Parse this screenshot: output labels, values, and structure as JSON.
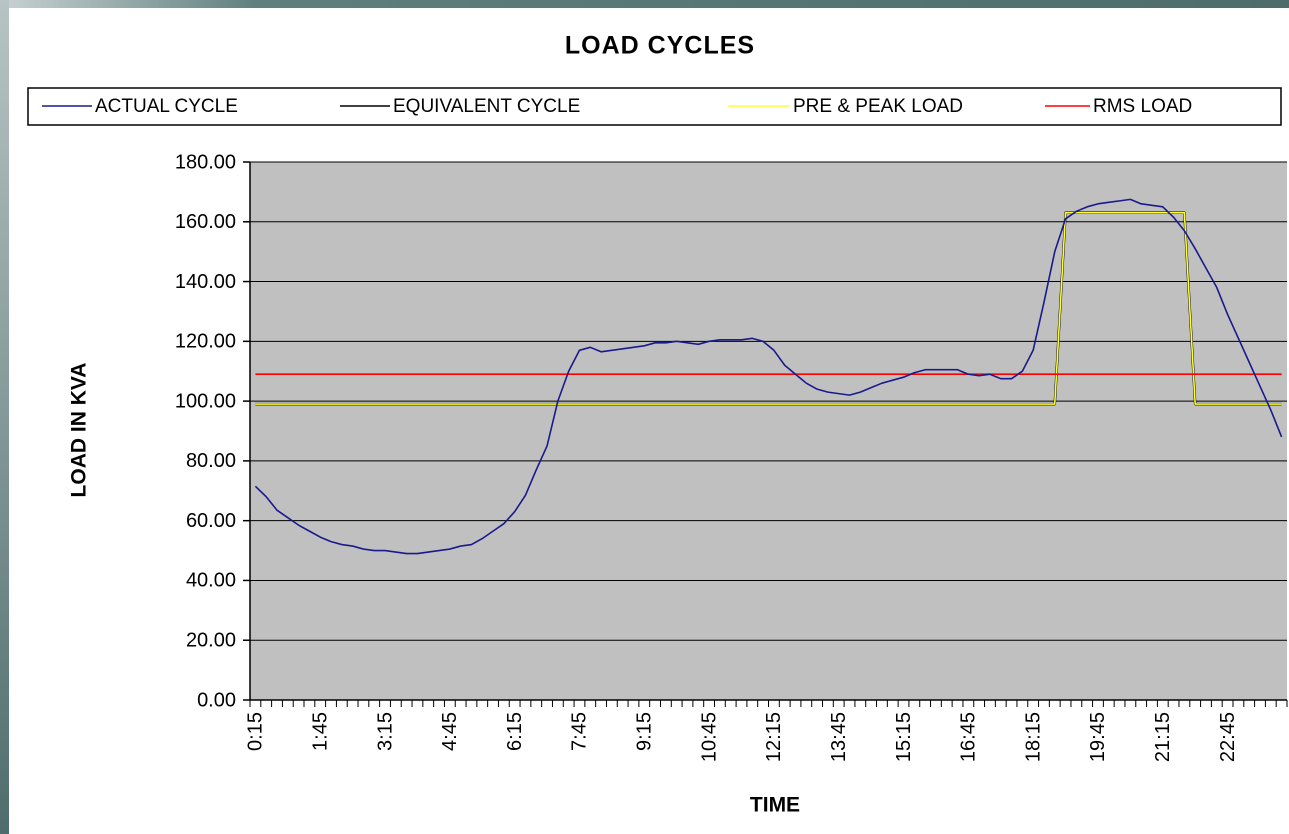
{
  "chart_data": {
    "type": "line",
    "title": "LOAD CYCLES",
    "x_label": "TIME",
    "y_label": "LOAD IN KVA",
    "categories": [
      "0:15",
      null,
      null,
      null,
      null,
      null,
      "1:45",
      null,
      null,
      null,
      null,
      null,
      "3:15",
      null,
      null,
      null,
      null,
      null,
      "4:45",
      null,
      null,
      null,
      null,
      null,
      "6:15",
      null,
      null,
      null,
      null,
      null,
      "7:45",
      null,
      null,
      null,
      null,
      null,
      "9:15",
      null,
      null,
      null,
      null,
      null,
      "10:45",
      null,
      null,
      null,
      null,
      null,
      "12:15",
      null,
      null,
      null,
      null,
      null,
      "13:45",
      null,
      null,
      null,
      null,
      null,
      "15:15",
      null,
      null,
      null,
      null,
      null,
      "16:45",
      null,
      null,
      null,
      null,
      null,
      "18:15",
      null,
      null,
      null,
      null,
      null,
      "19:45",
      null,
      null,
      null,
      null,
      null,
      "21:15",
      null,
      null,
      null,
      null,
      null,
      "22:45",
      null,
      null,
      null,
      null,
      null
    ],
    "series": [
      {
        "name": "ACTUAL CYCLE",
        "color": "#1a1a8c",
        "values": [
          71.5,
          68,
          63.5,
          61,
          58.5,
          56.5,
          54.5,
          53,
          52,
          51.5,
          50.5,
          50,
          50,
          49.5,
          49,
          49,
          49.5,
          50,
          50.5,
          51.5,
          52,
          54,
          56.5,
          59,
          63,
          68.5,
          77,
          85,
          100,
          110,
          117,
          118,
          116.5,
          117,
          117.5,
          118,
          118.5,
          119.5,
          119.5,
          120,
          119.5,
          119,
          120,
          120.5,
          120.5,
          120.5,
          121,
          120,
          117,
          112,
          109,
          106,
          104,
          103,
          102.5,
          102,
          103,
          104.5,
          106,
          107,
          108,
          109.5,
          110.5,
          110.5,
          110.5,
          110.5,
          109,
          108.5,
          109,
          107.5,
          107.5,
          110,
          117,
          133,
          150,
          161,
          163.5,
          165,
          166,
          166.5,
          167,
          167.5,
          166,
          165.5,
          165,
          161.5,
          157,
          151,
          144.5,
          138,
          129,
          121,
          113,
          105,
          97,
          88
        ]
      },
      {
        "name": "EQUIVALENT CYCLE",
        "color": "#000000",
        "values": [
          99,
          99,
          99,
          99,
          99,
          99,
          99,
          99,
          99,
          99,
          99,
          99,
          99,
          99,
          99,
          99,
          99,
          99,
          99,
          99,
          99,
          99,
          99,
          99,
          99,
          99,
          99,
          99,
          99,
          99,
          99,
          99,
          99,
          99,
          99,
          99,
          99,
          99,
          99,
          99,
          99,
          99,
          99,
          99,
          99,
          99,
          99,
          99,
          99,
          99,
          99,
          99,
          99,
          99,
          99,
          99,
          99,
          99,
          99,
          99,
          99,
          99,
          99,
          99,
          99,
          99,
          99,
          99,
          99,
          99,
          99,
          99,
          99,
          99,
          99,
          163,
          163,
          163,
          163,
          163,
          163,
          163,
          163,
          163,
          163,
          163,
          163,
          99,
          99,
          99,
          99,
          99,
          99,
          99,
          99,
          99
        ]
      },
      {
        "name": "PRE & PEAK LOAD",
        "color": "#ffff33",
        "values": [
          99,
          99,
          99,
          99,
          99,
          99,
          99,
          99,
          99,
          99,
          99,
          99,
          99,
          99,
          99,
          99,
          99,
          99,
          99,
          99,
          99,
          99,
          99,
          99,
          99,
          99,
          99,
          99,
          99,
          99,
          99,
          99,
          99,
          99,
          99,
          99,
          99,
          99,
          99,
          99,
          99,
          99,
          99,
          99,
          99,
          99,
          99,
          99,
          99,
          99,
          99,
          99,
          99,
          99,
          99,
          99,
          99,
          99,
          99,
          99,
          99,
          99,
          99,
          99,
          99,
          99,
          99,
          99,
          99,
          99,
          99,
          99,
          99,
          99,
          99,
          163,
          163,
          163,
          163,
          163,
          163,
          163,
          163,
          163,
          163,
          163,
          163,
          99,
          99,
          99,
          99,
          99,
          99,
          99,
          99,
          99
        ]
      },
      {
        "name": "RMS LOAD",
        "color": "#ff0000",
        "values": [
          109,
          109,
          109,
          109,
          109,
          109,
          109,
          109,
          109,
          109,
          109,
          109,
          109,
          109,
          109,
          109,
          109,
          109,
          109,
          109,
          109,
          109,
          109,
          109,
          109,
          109,
          109,
          109,
          109,
          109,
          109,
          109,
          109,
          109,
          109,
          109,
          109,
          109,
          109,
          109,
          109,
          109,
          109,
          109,
          109,
          109,
          109,
          109,
          109,
          109,
          109,
          109,
          109,
          109,
          109,
          109,
          109,
          109,
          109,
          109,
          109,
          109,
          109,
          109,
          109,
          109,
          109,
          109,
          109,
          109,
          109,
          109,
          109,
          109,
          109,
          109,
          109,
          109,
          109,
          109,
          109,
          109,
          109,
          109,
          109,
          109,
          109,
          109,
          109,
          109,
          109,
          109,
          109,
          109,
          109,
          109
        ]
      }
    ],
    "ylim": [
      0,
      180
    ],
    "yticks": [
      {
        "value": 0,
        "label": "0.00"
      },
      {
        "value": 20,
        "label": "20.00"
      },
      {
        "value": 40,
        "label": "40.00"
      },
      {
        "value": 60,
        "label": "60.00"
      },
      {
        "value": 80,
        "label": "80.00"
      },
      {
        "value": 100,
        "label": "100.00"
      },
      {
        "value": 120,
        "label": "120.00"
      },
      {
        "value": 140,
        "label": "140.00"
      },
      {
        "value": 160,
        "label": "160.00"
      },
      {
        "value": 180,
        "label": "180.00"
      }
    ],
    "grid": true,
    "legend": "top"
  }
}
